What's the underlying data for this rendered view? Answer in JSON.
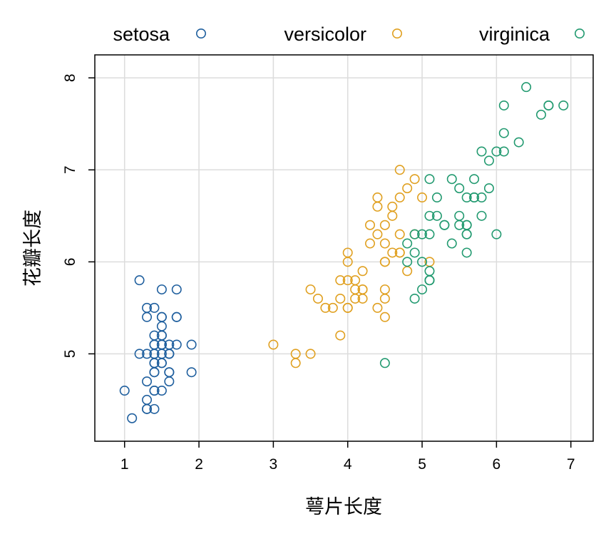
{
  "chart_data": {
    "type": "scatter",
    "title": "",
    "xlabel": "萼片长度",
    "ylabel": "花瓣长度",
    "xlim": [
      0.6,
      7.3
    ],
    "ylim": [
      4.05,
      8.25
    ],
    "xticks": [
      1,
      2,
      3,
      4,
      5,
      6,
      7
    ],
    "yticks": [
      5,
      6,
      7,
      8
    ],
    "grid": true,
    "legend": "top",
    "series": [
      {
        "name": "setosa",
        "color": "#1f5f9e",
        "points": [
          [
            1.4,
            5.1
          ],
          [
            1.4,
            4.9
          ],
          [
            1.3,
            4.7
          ],
          [
            1.5,
            4.6
          ],
          [
            1.4,
            5.0
          ],
          [
            1.7,
            5.4
          ],
          [
            1.4,
            4.6
          ],
          [
            1.5,
            5.0
          ],
          [
            1.4,
            4.4
          ],
          [
            1.5,
            4.9
          ],
          [
            1.5,
            5.4
          ],
          [
            1.6,
            4.8
          ],
          [
            1.4,
            4.8
          ],
          [
            1.1,
            4.3
          ],
          [
            1.2,
            5.8
          ],
          [
            1.5,
            5.7
          ],
          [
            1.3,
            5.4
          ],
          [
            1.4,
            5.1
          ],
          [
            1.7,
            5.7
          ],
          [
            1.5,
            5.1
          ],
          [
            1.7,
            5.4
          ],
          [
            1.5,
            5.1
          ],
          [
            1.0,
            4.6
          ],
          [
            1.7,
            5.1
          ],
          [
            1.9,
            4.8
          ],
          [
            1.6,
            5.0
          ],
          [
            1.6,
            5.0
          ],
          [
            1.5,
            5.2
          ],
          [
            1.4,
            5.2
          ],
          [
            1.6,
            4.7
          ],
          [
            1.6,
            4.8
          ],
          [
            1.5,
            5.4
          ],
          [
            1.5,
            5.2
          ],
          [
            1.4,
            5.5
          ],
          [
            1.5,
            4.9
          ],
          [
            1.2,
            5.0
          ],
          [
            1.3,
            5.5
          ],
          [
            1.4,
            4.9
          ],
          [
            1.3,
            4.4
          ],
          [
            1.5,
            5.1
          ],
          [
            1.3,
            5.0
          ],
          [
            1.3,
            4.5
          ],
          [
            1.3,
            4.4
          ],
          [
            1.6,
            5.0
          ],
          [
            1.9,
            5.1
          ],
          [
            1.4,
            4.8
          ],
          [
            1.6,
            5.1
          ],
          [
            1.4,
            4.6
          ],
          [
            1.5,
            5.3
          ],
          [
            1.4,
            5.0
          ]
        ]
      },
      {
        "name": "versicolor",
        "color": "#e0a020",
        "points": [
          [
            4.7,
            7.0
          ],
          [
            4.5,
            6.4
          ],
          [
            4.9,
            6.9
          ],
          [
            4.0,
            5.5
          ],
          [
            4.6,
            6.5
          ],
          [
            4.5,
            5.7
          ],
          [
            4.7,
            6.3
          ],
          [
            3.3,
            4.9
          ],
          [
            4.6,
            6.6
          ],
          [
            3.9,
            5.2
          ],
          [
            3.5,
            5.0
          ],
          [
            4.2,
            5.9
          ],
          [
            4.0,
            6.0
          ],
          [
            4.7,
            6.1
          ],
          [
            3.6,
            5.6
          ],
          [
            4.4,
            6.7
          ],
          [
            4.5,
            5.6
          ],
          [
            4.1,
            5.8
          ],
          [
            4.5,
            6.2
          ],
          [
            3.9,
            5.6
          ],
          [
            4.8,
            5.9
          ],
          [
            4.0,
            6.1
          ],
          [
            4.9,
            6.3
          ],
          [
            4.7,
            6.1
          ],
          [
            4.3,
            6.4
          ],
          [
            4.4,
            6.6
          ],
          [
            4.8,
            6.8
          ],
          [
            5.0,
            6.7
          ],
          [
            4.5,
            6.0
          ],
          [
            3.5,
            5.7
          ],
          [
            3.8,
            5.5
          ],
          [
            3.7,
            5.5
          ],
          [
            3.9,
            5.8
          ],
          [
            5.1,
            6.0
          ],
          [
            4.5,
            5.4
          ],
          [
            4.5,
            6.0
          ],
          [
            4.7,
            6.7
          ],
          [
            4.4,
            6.3
          ],
          [
            4.1,
            5.6
          ],
          [
            4.0,
            5.5
          ],
          [
            4.4,
            5.5
          ],
          [
            4.6,
            6.1
          ],
          [
            4.0,
            5.8
          ],
          [
            3.3,
            5.0
          ],
          [
            4.2,
            5.6
          ],
          [
            4.2,
            5.7
          ],
          [
            4.2,
            5.7
          ],
          [
            4.3,
            6.2
          ],
          [
            3.0,
            5.1
          ],
          [
            4.1,
            5.7
          ]
        ]
      },
      {
        "name": "virginica",
        "color": "#229a70",
        "points": [
          [
            6.0,
            6.3
          ],
          [
            5.1,
            5.8
          ],
          [
            5.9,
            7.1
          ],
          [
            5.6,
            6.3
          ],
          [
            5.8,
            6.5
          ],
          [
            6.6,
            7.6
          ],
          [
            4.5,
            4.9
          ],
          [
            6.3,
            7.3
          ],
          [
            5.8,
            6.7
          ],
          [
            6.1,
            7.2
          ],
          [
            5.1,
            6.5
          ],
          [
            5.3,
            6.4
          ],
          [
            5.5,
            6.8
          ],
          [
            5.0,
            5.7
          ],
          [
            5.1,
            5.8
          ],
          [
            5.3,
            6.4
          ],
          [
            5.5,
            6.5
          ],
          [
            6.7,
            7.7
          ],
          [
            6.9,
            7.7
          ],
          [
            5.0,
            6.0
          ],
          [
            5.7,
            6.9
          ],
          [
            4.9,
            5.6
          ],
          [
            6.7,
            7.7
          ],
          [
            4.9,
            6.3
          ],
          [
            5.7,
            6.7
          ],
          [
            6.0,
            7.2
          ],
          [
            4.8,
            6.2
          ],
          [
            4.9,
            6.1
          ],
          [
            5.6,
            6.4
          ],
          [
            5.8,
            7.2
          ],
          [
            6.1,
            7.4
          ],
          [
            6.4,
            7.9
          ],
          [
            5.6,
            6.4
          ],
          [
            5.1,
            6.3
          ],
          [
            5.6,
            6.1
          ],
          [
            6.1,
            7.7
          ],
          [
            5.6,
            6.3
          ],
          [
            5.5,
            6.4
          ],
          [
            4.8,
            6.0
          ],
          [
            5.4,
            6.9
          ],
          [
            5.6,
            6.7
          ],
          [
            5.1,
            6.9
          ],
          [
            5.1,
            5.8
          ],
          [
            5.9,
            6.8
          ],
          [
            5.7,
            6.7
          ],
          [
            5.2,
            6.7
          ],
          [
            5.0,
            6.3
          ],
          [
            5.2,
            6.5
          ],
          [
            5.4,
            6.2
          ],
          [
            5.1,
            5.9
          ]
        ]
      }
    ]
  }
}
